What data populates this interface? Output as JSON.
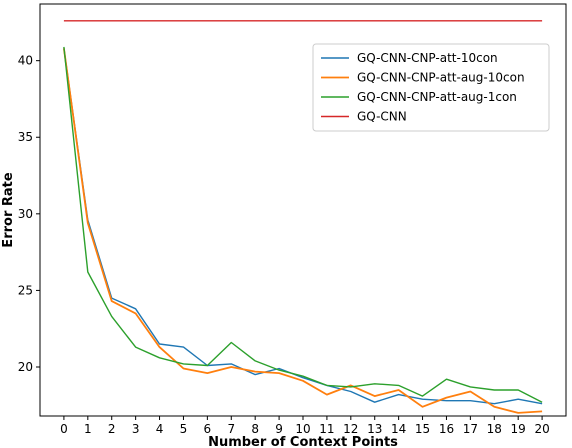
{
  "chart_data": {
    "type": "line",
    "title": "",
    "xlabel": "Number of Context Points",
    "ylabel": "Error Rate",
    "x": [
      0,
      1,
      2,
      3,
      4,
      5,
      6,
      7,
      8,
      9,
      10,
      11,
      12,
      13,
      14,
      15,
      16,
      17,
      18,
      19,
      20
    ],
    "x_ticks": [
      "0",
      "1",
      "2",
      "3",
      "4",
      "5",
      "6",
      "7",
      "8",
      "9",
      "10",
      "11",
      "12",
      "13",
      "14",
      "15",
      "16",
      "17",
      "18",
      "19",
      "20"
    ],
    "y_ticks": [
      "20",
      "25",
      "30",
      "35",
      "40"
    ],
    "xlim": [
      -1,
      21
    ],
    "ylim": [
      16.8,
      43.7
    ],
    "grid": false,
    "legend_position": "upper-right",
    "series": [
      {
        "name": "GQ-CNN-CNP-att-10con",
        "color": "#1f77b4",
        "values": [
          40.8,
          29.6,
          24.5,
          23.8,
          21.5,
          21.3,
          20.1,
          20.2,
          19.5,
          19.9,
          19.3,
          18.8,
          18.4,
          17.7,
          18.2,
          17.9,
          17.8,
          17.8,
          17.6,
          17.9,
          17.6
        ]
      },
      {
        "name": "GQ-CNN-CNP-att-aug-10con",
        "color": "#ff7f0e",
        "values": [
          40.8,
          29.4,
          24.3,
          23.5,
          21.3,
          19.9,
          19.6,
          20.0,
          19.7,
          19.6,
          19.1,
          18.2,
          18.8,
          18.1,
          18.5,
          17.4,
          18.0,
          18.4,
          17.4,
          17.0,
          17.1
        ]
      },
      {
        "name": "GQ-CNN-CNP-att-aug-1con",
        "color": "#2ca02c",
        "values": [
          40.9,
          26.2,
          23.3,
          21.3,
          20.6,
          20.2,
          20.1,
          21.6,
          20.4,
          19.8,
          19.4,
          18.8,
          18.7,
          18.9,
          18.8,
          18.1,
          19.2,
          18.7,
          18.5,
          18.5,
          17.7
        ]
      },
      {
        "name": "GQ-CNN",
        "color": "#d62728",
        "values": [
          42.6,
          42.6,
          42.6,
          42.6,
          42.6,
          42.6,
          42.6,
          42.6,
          42.6,
          42.6,
          42.6,
          42.6,
          42.6,
          42.6,
          42.6,
          42.6,
          42.6,
          42.6,
          42.6,
          42.6,
          42.6
        ]
      }
    ]
  }
}
